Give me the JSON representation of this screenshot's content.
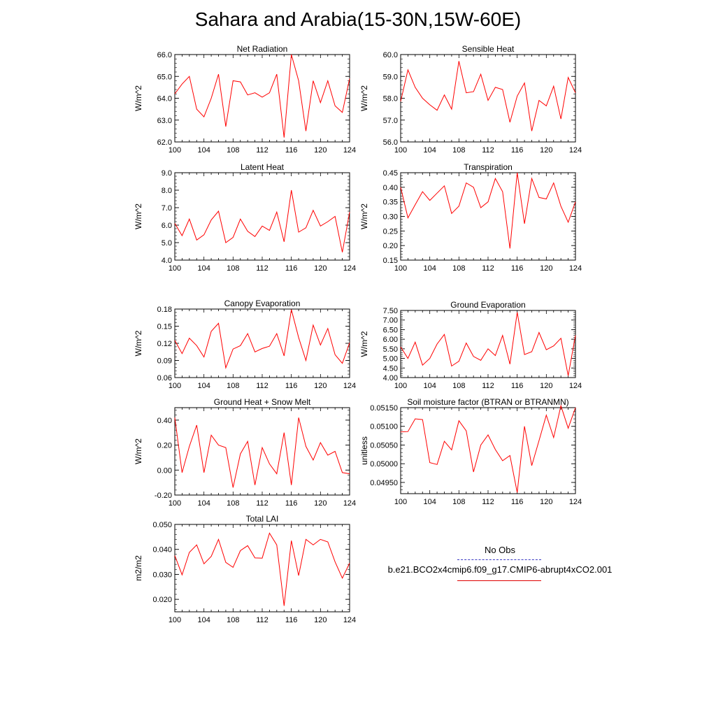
{
  "title": "Sahara and Arabia(15-30N,15W-60E)",
  "colors": {
    "model": "#ff0000",
    "obs": "#3333cc"
  },
  "legend": {
    "obs_label": "No Obs",
    "run_label": "b.e21.BCO2x4cmip6.f09_g17.CMIP6-abrupt4xCO2.001"
  },
  "chart_data": [
    {
      "type": "line",
      "title": "Net Radiation",
      "ylabel": "W/m^2",
      "ylim": [
        62.0,
        66.0
      ],
      "yticks": [
        "62.0",
        "63.0",
        "64.0",
        "65.0",
        "66.0"
      ],
      "ytick_values": [
        62.0,
        63.0,
        64.0,
        65.0,
        66.0
      ],
      "xlim": [
        100,
        124
      ],
      "xticks": [
        "100",
        "104",
        "108",
        "112",
        "116",
        "120",
        "124"
      ],
      "x": [
        100,
        101,
        102,
        103,
        104,
        105,
        106,
        107,
        108,
        109,
        110,
        111,
        112,
        113,
        114,
        115,
        116,
        117,
        118,
        119,
        120,
        121,
        122,
        123,
        124
      ],
      "series": [
        {
          "values": [
            64.2,
            64.65,
            65.0,
            63.5,
            63.15,
            64.0,
            65.1,
            62.7,
            64.8,
            64.75,
            64.15,
            64.25,
            64.05,
            64.25,
            65.1,
            62.2,
            66.0,
            64.8,
            62.5,
            64.8,
            63.8,
            64.8,
            63.65,
            63.35,
            64.9
          ]
        }
      ]
    },
    {
      "type": "line",
      "title": "Sensible Heat",
      "ylabel": "W/m^2",
      "ylim": [
        56.0,
        60.0
      ],
      "yticks": [
        "56.0",
        "57.0",
        "58.0",
        "59.0",
        "60.0"
      ],
      "ytick_values": [
        56.0,
        57.0,
        58.0,
        59.0,
        60.0
      ],
      "xlim": [
        100,
        124
      ],
      "xticks": [
        "100",
        "104",
        "108",
        "112",
        "116",
        "120",
        "124"
      ],
      "x": [
        100,
        101,
        102,
        103,
        104,
        105,
        106,
        107,
        108,
        109,
        110,
        111,
        112,
        113,
        114,
        115,
        116,
        117,
        118,
        119,
        120,
        121,
        122,
        123,
        124
      ],
      "series": [
        {
          "values": [
            57.85,
            59.3,
            58.5,
            58.0,
            57.7,
            57.45,
            58.15,
            57.5,
            59.7,
            58.25,
            58.3,
            59.1,
            57.9,
            58.5,
            58.4,
            56.9,
            58.1,
            58.7,
            56.5,
            57.9,
            57.65,
            58.55,
            57.05,
            58.95,
            58.25
          ]
        }
      ]
    },
    {
      "type": "line",
      "title": "Latent Heat",
      "ylabel": "W/m^2",
      "ylim": [
        4.0,
        9.0
      ],
      "yticks": [
        "4.0",
        "5.0",
        "6.0",
        "7.0",
        "8.0",
        "9.0"
      ],
      "ytick_values": [
        4.0,
        5.0,
        6.0,
        7.0,
        8.0,
        9.0
      ],
      "xlim": [
        100,
        124
      ],
      "xticks": [
        "100",
        "104",
        "108",
        "112",
        "116",
        "120",
        "124"
      ],
      "x": [
        100,
        101,
        102,
        103,
        104,
        105,
        106,
        107,
        108,
        109,
        110,
        111,
        112,
        113,
        114,
        115,
        116,
        117,
        118,
        119,
        120,
        121,
        122,
        123,
        124
      ],
      "series": [
        {
          "values": [
            6.1,
            5.4,
            6.35,
            5.15,
            5.45,
            6.3,
            6.8,
            5.0,
            5.3,
            6.35,
            5.65,
            5.35,
            5.95,
            5.7,
            6.75,
            5.05,
            8.0,
            5.6,
            5.85,
            6.85,
            5.95,
            6.2,
            6.5,
            4.45,
            6.75
          ]
        }
      ]
    },
    {
      "type": "line",
      "title": "Transpiration",
      "ylabel": "W/m^2",
      "ylim": [
        0.15,
        0.45
      ],
      "yticks": [
        "0.15",
        "0.20",
        "0.25",
        "0.30",
        "0.35",
        "0.40",
        "0.45"
      ],
      "ytick_values": [
        0.15,
        0.2,
        0.25,
        0.3,
        0.35,
        0.4,
        0.45
      ],
      "xlim": [
        100,
        124
      ],
      "xticks": [
        "100",
        "104",
        "108",
        "112",
        "116",
        "120",
        "124"
      ],
      "x": [
        100,
        101,
        102,
        103,
        104,
        105,
        106,
        107,
        108,
        109,
        110,
        111,
        112,
        113,
        114,
        115,
        116,
        117,
        118,
        119,
        120,
        121,
        122,
        123,
        124
      ],
      "series": [
        {
          "values": [
            0.4,
            0.295,
            0.34,
            0.385,
            0.355,
            0.38,
            0.405,
            0.31,
            0.335,
            0.415,
            0.4,
            0.33,
            0.35,
            0.43,
            0.385,
            0.19,
            0.45,
            0.275,
            0.43,
            0.365,
            0.36,
            0.415,
            0.335,
            0.28,
            0.35
          ]
        }
      ]
    },
    {
      "type": "line",
      "title": "Canopy Evaporation",
      "ylabel": "W/m^2",
      "ylim": [
        0.06,
        0.18
      ],
      "yticks": [
        "0.06",
        "0.09",
        "0.12",
        "0.15",
        "0.18"
      ],
      "ytick_values": [
        0.06,
        0.09,
        0.12,
        0.15,
        0.18
      ],
      "xlim": [
        100,
        124
      ],
      "xticks": [
        "100",
        "104",
        "108",
        "112",
        "116",
        "120",
        "124"
      ],
      "x": [
        100,
        101,
        102,
        103,
        104,
        105,
        106,
        107,
        108,
        109,
        110,
        111,
        112,
        113,
        114,
        115,
        116,
        117,
        118,
        119,
        120,
        121,
        122,
        123,
        124
      ],
      "series": [
        {
          "values": [
            0.125,
            0.102,
            0.129,
            0.116,
            0.096,
            0.141,
            0.155,
            0.077,
            0.11,
            0.116,
            0.137,
            0.105,
            0.111,
            0.115,
            0.137,
            0.098,
            0.179,
            0.13,
            0.09,
            0.152,
            0.117,
            0.146,
            0.1,
            0.085,
            0.121
          ]
        }
      ]
    },
    {
      "type": "line",
      "title": "Ground Evaporation",
      "ylabel": "W/m^2",
      "ylim": [
        4.0,
        7.5
      ],
      "yticks": [
        "4.00",
        "4.50",
        "5.00",
        "5.50",
        "6.00",
        "6.50",
        "7.00",
        "7.50"
      ],
      "ytick_values": [
        4.0,
        4.5,
        5.0,
        5.5,
        6.0,
        6.5,
        7.0,
        7.5
      ],
      "xlim": [
        100,
        124
      ],
      "xticks": [
        "100",
        "104",
        "108",
        "112",
        "116",
        "120",
        "124"
      ],
      "x": [
        100,
        101,
        102,
        103,
        104,
        105,
        106,
        107,
        108,
        109,
        110,
        111,
        112,
        113,
        114,
        115,
        116,
        117,
        118,
        119,
        120,
        121,
        122,
        123,
        124
      ],
      "series": [
        {
          "values": [
            5.6,
            5.0,
            5.85,
            4.65,
            5.0,
            5.75,
            6.25,
            4.6,
            4.85,
            5.8,
            5.1,
            4.9,
            5.5,
            5.15,
            6.2,
            4.7,
            7.4,
            5.2,
            5.35,
            6.35,
            5.45,
            5.65,
            6.05,
            4.1,
            6.2
          ]
        }
      ]
    },
    {
      "type": "line",
      "title": "Ground Heat + Snow Melt",
      "ylabel": "W/m^2",
      "ylim": [
        -0.2,
        0.5
      ],
      "yticks": [
        "-0.20",
        "0.00",
        "0.20",
        "0.40"
      ],
      "ytick_values": [
        -0.2,
        0.0,
        0.2,
        0.4
      ],
      "xlim": [
        100,
        124
      ],
      "xticks": [
        "100",
        "104",
        "108",
        "112",
        "116",
        "120",
        "124"
      ],
      "x": [
        100,
        101,
        102,
        103,
        104,
        105,
        106,
        107,
        108,
        109,
        110,
        111,
        112,
        113,
        114,
        115,
        116,
        117,
        118,
        119,
        120,
        121,
        122,
        123,
        124
      ],
      "series": [
        {
          "values": [
            0.42,
            -0.02,
            0.19,
            0.36,
            -0.02,
            0.28,
            0.2,
            0.18,
            -0.14,
            0.13,
            0.23,
            -0.12,
            0.18,
            0.05,
            -0.03,
            0.3,
            -0.12,
            0.42,
            0.19,
            0.08,
            0.22,
            0.12,
            0.15,
            -0.02,
            -0.03
          ]
        }
      ]
    },
    {
      "type": "line",
      "title": "Soil moisture factor (BTRAN or BTRANMN)",
      "ylabel": "unitless",
      "ylim": [
        0.0492,
        0.0515
      ],
      "yticks": [
        "0.04950",
        "0.05000",
        "0.05050",
        "0.05100",
        "0.05150"
      ],
      "ytick_values": [
        0.0495,
        0.05,
        0.0505,
        0.051,
        0.0515
      ],
      "xlim": [
        100,
        124
      ],
      "xticks": [
        "100",
        "104",
        "108",
        "112",
        "116",
        "120",
        "124"
      ],
      "x": [
        100,
        101,
        102,
        103,
        104,
        105,
        106,
        107,
        108,
        109,
        110,
        111,
        112,
        113,
        114,
        115,
        116,
        117,
        118,
        119,
        120,
        121,
        122,
        123,
        124
      ],
      "series": [
        {
          "values": [
            0.05085,
            0.05086,
            0.0512,
            0.05118,
            0.05003,
            0.04998,
            0.0506,
            0.05037,
            0.05115,
            0.05088,
            0.04978,
            0.0505,
            0.05077,
            0.05038,
            0.05008,
            0.05022,
            0.04923,
            0.051,
            0.04995,
            0.05062,
            0.0513,
            0.0507,
            0.05155,
            0.05095,
            0.0515
          ]
        }
      ]
    },
    {
      "type": "line",
      "title": "Total LAI",
      "ylabel": "m2/m2",
      "ylim": [
        0.015,
        0.05
      ],
      "yticks": [
        "0.020",
        "0.030",
        "0.040",
        "0.050"
      ],
      "ytick_values": [
        0.02,
        0.03,
        0.04,
        0.05
      ],
      "xlim": [
        100,
        124
      ],
      "xticks": [
        "100",
        "104",
        "108",
        "112",
        "116",
        "120",
        "124"
      ],
      "x": [
        100,
        101,
        102,
        103,
        104,
        105,
        106,
        107,
        108,
        109,
        110,
        111,
        112,
        113,
        114,
        115,
        116,
        117,
        118,
        119,
        120,
        121,
        122,
        123,
        124
      ],
      "series": [
        {
          "values": [
            0.0375,
            0.0298,
            0.0388,
            0.0418,
            0.0342,
            0.0372,
            0.044,
            0.0348,
            0.0328,
            0.0395,
            0.0415,
            0.0366,
            0.0365,
            0.0465,
            0.0418,
            0.0174,
            0.0435,
            0.0295,
            0.044,
            0.0418,
            0.044,
            0.043,
            0.035,
            0.0285,
            0.0345
          ]
        }
      ]
    }
  ]
}
